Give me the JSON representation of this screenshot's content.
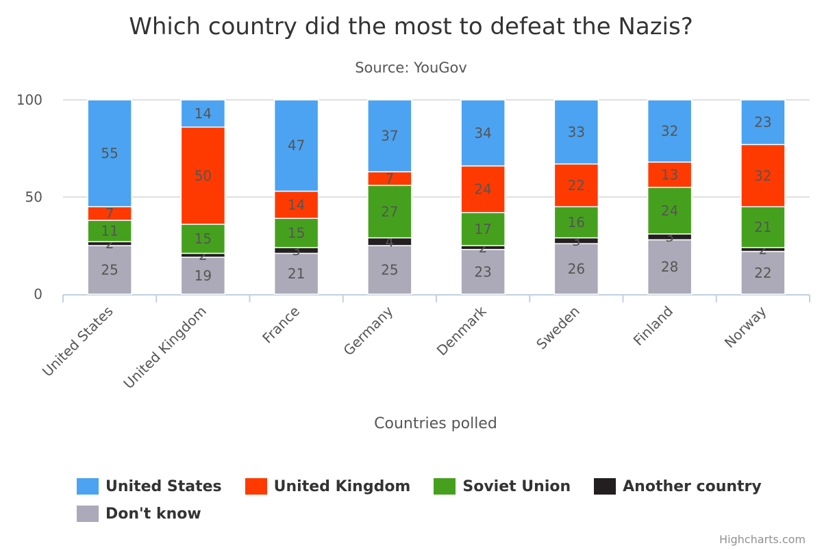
{
  "chart_data": {
    "type": "bar",
    "stacked": true,
    "title": "Which country did the most to defeat the Nazis?",
    "subtitle": "Source: YouGov",
    "xlabel": "Countries polled",
    "ylabel": "",
    "ylim": [
      0,
      100
    ],
    "yticks": [
      "0",
      "50",
      "100"
    ],
    "grid": true,
    "legend_position": "bottom",
    "categories": [
      "United States",
      "United Kingdom",
      "France",
      "Germany",
      "Denmark",
      "Sweden",
      "Finland",
      "Norway"
    ],
    "series": [
      {
        "name": "Don't know",
        "color": "#acaab8",
        "values": [
          25,
          19,
          21,
          25,
          23,
          26,
          28,
          22
        ]
      },
      {
        "name": "Another country",
        "color": "#231f20",
        "values": [
          2,
          2,
          3,
          4,
          2,
          3,
          3,
          2
        ]
      },
      {
        "name": "Soviet Union",
        "color": "#45a11d",
        "values": [
          11,
          15,
          15,
          27,
          17,
          16,
          24,
          21
        ]
      },
      {
        "name": "United Kingdom",
        "color": "#ff3a00",
        "values": [
          7,
          50,
          14,
          7,
          24,
          22,
          13,
          32
        ]
      },
      {
        "name": "United States",
        "color": "#4ba3f1",
        "values": [
          55,
          14,
          47,
          37,
          34,
          33,
          32,
          23
        ]
      }
    ],
    "legend_order": [
      "United States",
      "United Kingdom",
      "Soviet Union",
      "Another country",
      "Don't know"
    ]
  },
  "credits": "Highcharts.com"
}
